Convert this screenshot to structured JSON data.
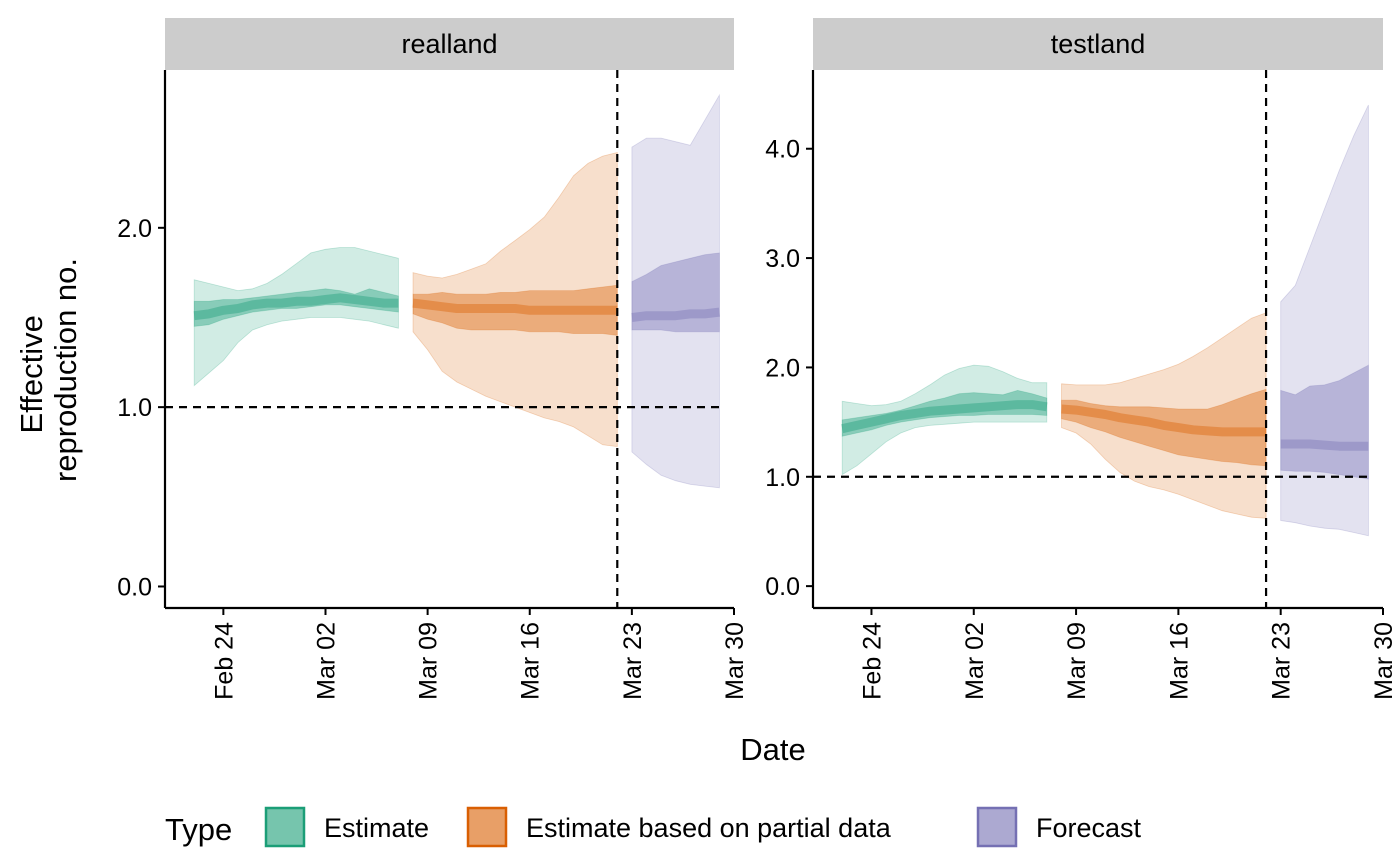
{
  "chart_data": {
    "type": "area",
    "xlabel": "Date",
    "ylabel": [
      "Effective",
      "reproduction no."
    ],
    "legend": {
      "title": "Type",
      "position": "bottom",
      "entries": [
        {
          "label": "Estimate",
          "fill": "#1b9e77",
          "stroke": "#1b9e77"
        },
        {
          "label": "Estimate based on partial data",
          "fill": "#d95f02",
          "stroke": "#d95f02"
        },
        {
          "label": "Forecast",
          "fill": "#7570b3",
          "stroke": "#7570b3"
        }
      ]
    },
    "x_ticks": [
      "Feb 24",
      "Mar 02",
      "Mar 09",
      "Mar 16",
      "Mar 23",
      "Mar 30"
    ],
    "x_tick_dates": [
      "2020-02-24",
      "2020-03-02",
      "2020-03-09",
      "2020-03-16",
      "2020-03-23",
      "2020-03-30"
    ],
    "xlim": [
      "2020-02-20",
      "2020-03-30"
    ],
    "reference_date": "2020-03-22",
    "reference_line_y": 1.0,
    "grid": false,
    "panels": [
      {
        "strip": "realland",
        "ylim": [
          -0.12,
          2.88
        ],
        "y_ticks": [
          0.0,
          1.0,
          2.0
        ],
        "y_tick_labels": [
          "0.0",
          "1.0",
          "2.0"
        ],
        "series": [
          {
            "type": "Estimate",
            "x": [
              "2020-02-22",
              "2020-02-23",
              "2020-02-24",
              "2020-02-25",
              "2020-02-26",
              "2020-02-27",
              "2020-02-28",
              "2020-02-29",
              "2020-03-01",
              "2020-03-02",
              "2020-03-03",
              "2020-03-04",
              "2020-03-05",
              "2020-03-06",
              "2020-03-07"
            ],
            "outer": [
              [
                1.12,
                1.71
              ],
              [
                1.19,
                1.69
              ],
              [
                1.26,
                1.67
              ],
              [
                1.36,
                1.65
              ],
              [
                1.43,
                1.66
              ],
              [
                1.46,
                1.69
              ],
              [
                1.48,
                1.74
              ],
              [
                1.49,
                1.8
              ],
              [
                1.5,
                1.86
              ],
              [
                1.5,
                1.88
              ],
              [
                1.5,
                1.89
              ],
              [
                1.49,
                1.89
              ],
              [
                1.48,
                1.87
              ],
              [
                1.46,
                1.85
              ],
              [
                1.44,
                1.83
              ]
            ],
            "inner": [
              [
                1.45,
                1.59
              ],
              [
                1.46,
                1.59
              ],
              [
                1.49,
                1.6
              ],
              [
                1.51,
                1.6
              ],
              [
                1.53,
                1.61
              ],
              [
                1.54,
                1.62
              ],
              [
                1.55,
                1.63
              ],
              [
                1.55,
                1.64
              ],
              [
                1.56,
                1.65
              ],
              [
                1.57,
                1.66
              ],
              [
                1.57,
                1.65
              ],
              [
                1.56,
                1.63
              ],
              [
                1.55,
                1.66
              ],
              [
                1.54,
                1.64
              ],
              [
                1.53,
                1.62
              ]
            ],
            "median": [
              1.51,
              1.52,
              1.54,
              1.55,
              1.57,
              1.58,
              1.58,
              1.59,
              1.59,
              1.6,
              1.61,
              1.6,
              1.59,
              1.58,
              1.58
            ]
          },
          {
            "type": "Estimate based on partial data",
            "x": [
              "2020-03-08",
              "2020-03-09",
              "2020-03-10",
              "2020-03-11",
              "2020-03-12",
              "2020-03-13",
              "2020-03-14",
              "2020-03-15",
              "2020-03-16",
              "2020-03-17",
              "2020-03-18",
              "2020-03-19",
              "2020-03-20",
              "2020-03-21",
              "2020-03-22"
            ],
            "outer": [
              [
                1.42,
                1.75
              ],
              [
                1.32,
                1.73
              ],
              [
                1.2,
                1.72
              ],
              [
                1.14,
                1.74
              ],
              [
                1.1,
                1.77
              ],
              [
                1.06,
                1.8
              ],
              [
                1.03,
                1.87
              ],
              [
                1.0,
                1.93
              ],
              [
                0.97,
                1.99
              ],
              [
                0.94,
                2.06
              ],
              [
                0.92,
                2.17
              ],
              [
                0.89,
                2.29
              ],
              [
                0.84,
                2.36
              ],
              [
                0.79,
                2.4
              ],
              [
                0.78,
                2.42
              ]
            ],
            "inner": [
              [
                1.52,
                1.63
              ],
              [
                1.49,
                1.63
              ],
              [
                1.47,
                1.64
              ],
              [
                1.44,
                1.63
              ],
              [
                1.43,
                1.63
              ],
              [
                1.43,
                1.63
              ],
              [
                1.43,
                1.64
              ],
              [
                1.43,
                1.64
              ],
              [
                1.42,
                1.65
              ],
              [
                1.42,
                1.65
              ],
              [
                1.42,
                1.65
              ],
              [
                1.41,
                1.65
              ],
              [
                1.41,
                1.66
              ],
              [
                1.41,
                1.67
              ],
              [
                1.4,
                1.68
              ]
            ],
            "median": [
              1.58,
              1.57,
              1.56,
              1.55,
              1.55,
              1.55,
              1.55,
              1.55,
              1.54,
              1.54,
              1.54,
              1.54,
              1.54,
              1.54,
              1.54
            ]
          },
          {
            "type": "Forecast",
            "x": [
              "2020-03-23",
              "2020-03-24",
              "2020-03-25",
              "2020-03-26",
              "2020-03-27",
              "2020-03-28",
              "2020-03-29"
            ],
            "outer": [
              [
                0.75,
                2.45
              ],
              [
                0.68,
                2.5
              ],
              [
                0.62,
                2.5
              ],
              [
                0.59,
                2.48
              ],
              [
                0.57,
                2.46
              ],
              [
                0.56,
                2.6
              ],
              [
                0.55,
                2.74
              ]
            ],
            "inner": [
              [
                1.43,
                1.7
              ],
              [
                1.43,
                1.74
              ],
              [
                1.43,
                1.79
              ],
              [
                1.42,
                1.81
              ],
              [
                1.42,
                1.83
              ],
              [
                1.42,
                1.85
              ],
              [
                1.42,
                1.86
              ]
            ],
            "median": [
              1.5,
              1.51,
              1.51,
              1.51,
              1.52,
              1.52,
              1.53
            ]
          }
        ]
      },
      {
        "strip": "testland",
        "ylim": [
          -0.2,
          4.72
        ],
        "y_ticks": [
          0.0,
          1.0,
          2.0,
          3.0,
          4.0
        ],
        "y_tick_labels": [
          "0.0",
          "1.0",
          "2.0",
          "3.0",
          "4.0"
        ],
        "series": [
          {
            "type": "Estimate",
            "x": [
              "2020-02-22",
              "2020-02-23",
              "2020-02-24",
              "2020-02-25",
              "2020-02-26",
              "2020-02-27",
              "2020-02-28",
              "2020-02-29",
              "2020-03-01",
              "2020-03-02",
              "2020-03-03",
              "2020-03-04",
              "2020-03-05",
              "2020-03-06",
              "2020-03-07"
            ],
            "outer": [
              [
                1.02,
                1.69
              ],
              [
                1.1,
                1.67
              ],
              [
                1.21,
                1.65
              ],
              [
                1.32,
                1.66
              ],
              [
                1.4,
                1.69
              ],
              [
                1.45,
                1.76
              ],
              [
                1.47,
                1.84
              ],
              [
                1.48,
                1.93
              ],
              [
                1.49,
                1.99
              ],
              [
                1.5,
                2.02
              ],
              [
                1.5,
                2.01
              ],
              [
                1.5,
                1.96
              ],
              [
                1.5,
                1.9
              ],
              [
                1.5,
                1.86
              ],
              [
                1.5,
                1.86
              ]
            ],
            "inner": [
              [
                1.37,
                1.52
              ],
              [
                1.4,
                1.54
              ],
              [
                1.43,
                1.56
              ],
              [
                1.47,
                1.58
              ],
              [
                1.5,
                1.61
              ],
              [
                1.52,
                1.65
              ],
              [
                1.54,
                1.69
              ],
              [
                1.55,
                1.72
              ],
              [
                1.56,
                1.76
              ],
              [
                1.56,
                1.77
              ],
              [
                1.57,
                1.76
              ],
              [
                1.57,
                1.75
              ],
              [
                1.57,
                1.79
              ],
              [
                1.57,
                1.76
              ],
              [
                1.56,
                1.72
              ]
            ],
            "median": [
              1.44,
              1.47,
              1.5,
              1.53,
              1.56,
              1.58,
              1.6,
              1.61,
              1.62,
              1.63,
              1.64,
              1.65,
              1.66,
              1.66,
              1.64
            ]
          },
          {
            "type": "Estimate based on partial data",
            "x": [
              "2020-03-08",
              "2020-03-09",
              "2020-03-10",
              "2020-03-11",
              "2020-03-12",
              "2020-03-13",
              "2020-03-14",
              "2020-03-15",
              "2020-03-16",
              "2020-03-17",
              "2020-03-18",
              "2020-03-19",
              "2020-03-20",
              "2020-03-21",
              "2020-03-22"
            ],
            "outer": [
              [
                1.45,
                1.85
              ],
              [
                1.4,
                1.84
              ],
              [
                1.3,
                1.84
              ],
              [
                1.16,
                1.84
              ],
              [
                1.04,
                1.86
              ],
              [
                0.96,
                1.9
              ],
              [
                0.91,
                1.94
              ],
              [
                0.88,
                1.98
              ],
              [
                0.84,
                2.03
              ],
              [
                0.79,
                2.1
              ],
              [
                0.74,
                2.18
              ],
              [
                0.69,
                2.27
              ],
              [
                0.66,
                2.36
              ],
              [
                0.63,
                2.45
              ],
              [
                0.62,
                2.5
              ]
            ],
            "inner": [
              [
                1.53,
                1.7
              ],
              [
                1.5,
                1.7
              ],
              [
                1.45,
                1.67
              ],
              [
                1.41,
                1.65
              ],
              [
                1.36,
                1.64
              ],
              [
                1.32,
                1.64
              ],
              [
                1.28,
                1.64
              ],
              [
                1.24,
                1.63
              ],
              [
                1.2,
                1.62
              ],
              [
                1.18,
                1.62
              ],
              [
                1.16,
                1.62
              ],
              [
                1.14,
                1.66
              ],
              [
                1.13,
                1.71
              ],
              [
                1.11,
                1.76
              ],
              [
                1.1,
                1.8
              ]
            ],
            "median": [
              1.62,
              1.61,
              1.59,
              1.57,
              1.54,
              1.52,
              1.5,
              1.47,
              1.45,
              1.43,
              1.42,
              1.41,
              1.41,
              1.41,
              1.41
            ]
          },
          {
            "type": "Forecast",
            "x": [
              "2020-03-23",
              "2020-03-24",
              "2020-03-25",
              "2020-03-26",
              "2020-03-27",
              "2020-03-28",
              "2020-03-29"
            ],
            "outer": [
              [
                0.6,
                2.6
              ],
              [
                0.58,
                2.75
              ],
              [
                0.55,
                3.1
              ],
              [
                0.53,
                3.45
              ],
              [
                0.52,
                3.8
              ],
              [
                0.49,
                4.12
              ],
              [
                0.46,
                4.4
              ]
            ],
            "inner": [
              [
                1.06,
                1.79
              ],
              [
                1.05,
                1.75
              ],
              [
                1.05,
                1.83
              ],
              [
                1.04,
                1.84
              ],
              [
                1.02,
                1.88
              ],
              [
                1.0,
                1.95
              ],
              [
                0.98,
                2.02
              ]
            ],
            "median": [
              1.3,
              1.3,
              1.3,
              1.29,
              1.28,
              1.28,
              1.28
            ]
          }
        ]
      }
    ]
  }
}
